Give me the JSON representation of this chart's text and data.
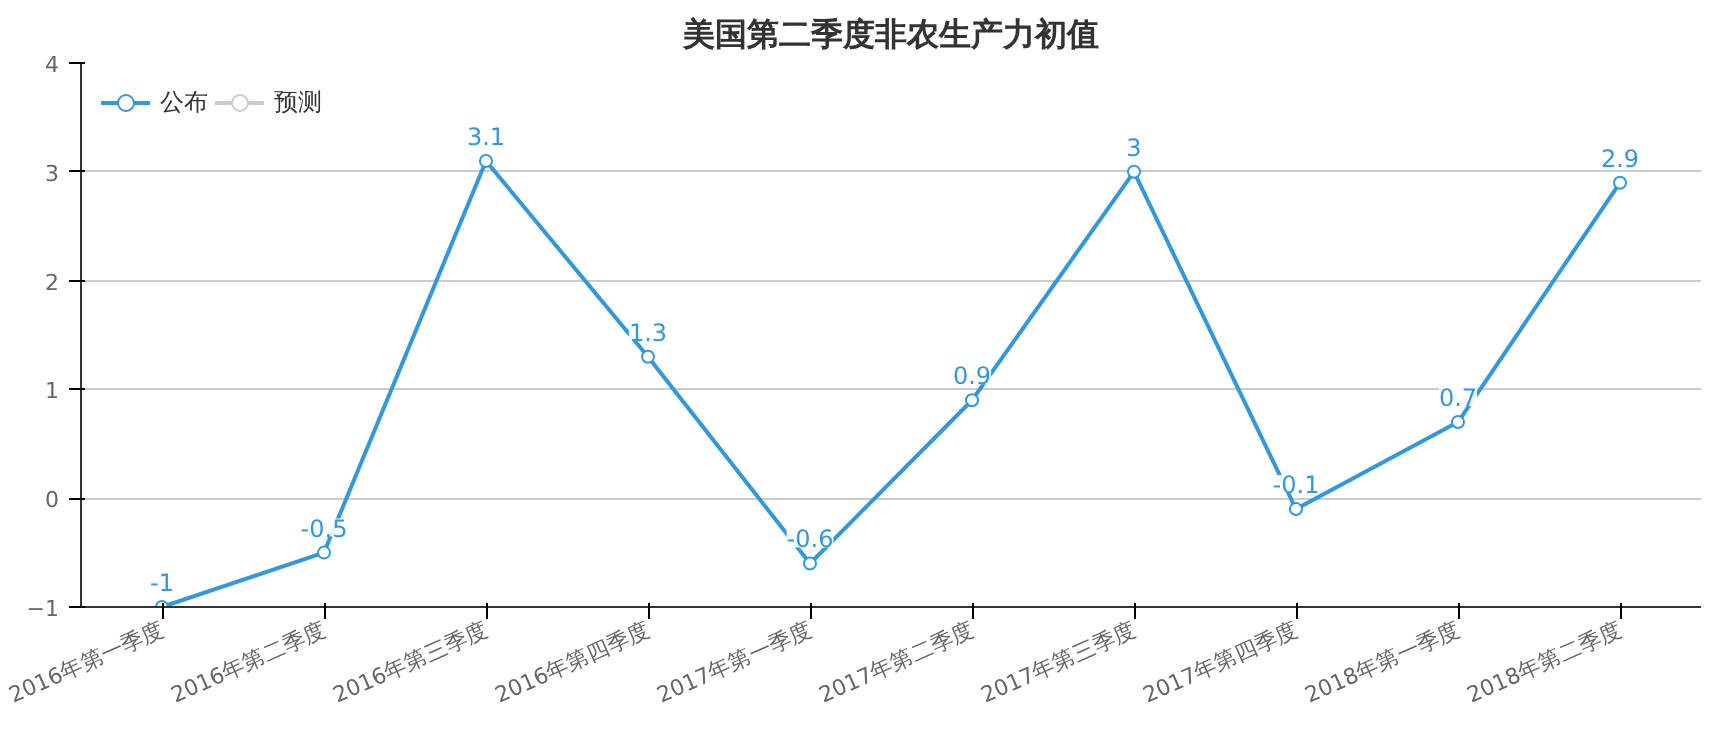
{
  "chart_data": {
    "type": "line",
    "title": "美国第二季度非农生产力初值",
    "categories": [
      "2016年第一季度",
      "2016年第二季度",
      "2016年第三季度",
      "2016年第四季度",
      "2017年第一季度",
      "2017年第二季度",
      "2017年第三季度",
      "2017年第四季度",
      "2018年第一季度",
      "2018年第二季度"
    ],
    "series": [
      {
        "name": "公布",
        "color": "#3398db",
        "values": [
          -1,
          -0.5,
          3.1,
          1.3,
          -0.6,
          0.9,
          3,
          -0.1,
          0.7,
          2.9
        ]
      },
      {
        "name": "预测",
        "color": "#cccccc",
        "values": [
          null,
          null,
          null,
          null,
          null,
          null,
          null,
          null,
          null,
          null
        ]
      }
    ],
    "ylim": [
      -1,
      4
    ],
    "yticks": [
      -1,
      0,
      1,
      2,
      3,
      4
    ],
    "grid": "y",
    "legend": "top left",
    "marker": "circle",
    "data_labels": true
  }
}
